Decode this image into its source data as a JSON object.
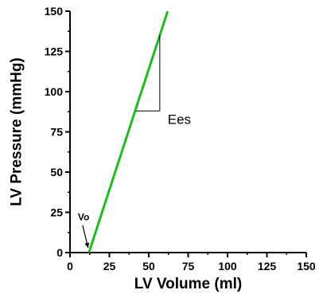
{
  "chart_data": {
    "type": "line",
    "title": "",
    "xlabel": "LV Volume (ml)",
    "ylabel": "LV Pressure (mmHg)",
    "xlim": [
      0,
      150
    ],
    "ylim": [
      0,
      150
    ],
    "x_ticks": [
      0,
      25,
      50,
      75,
      100,
      125,
      150
    ],
    "y_ticks": [
      0,
      25,
      50,
      75,
      100,
      125,
      150
    ],
    "grid": false,
    "series": [
      {
        "x": [
          12,
          62
        ],
        "y": [
          0,
          150
        ],
        "color": "#22bb22"
      }
    ],
    "slope_triangle": {
      "x": [
        42,
        57
      ],
      "y": [
        88,
        135
      ]
    },
    "annotations": {
      "ees": {
        "text": "Ees",
        "x": 62,
        "y": 80
      },
      "vo": {
        "text": "Vo",
        "x": 7,
        "y": 17,
        "arrow_to": [
          12,
          3
        ]
      }
    }
  }
}
